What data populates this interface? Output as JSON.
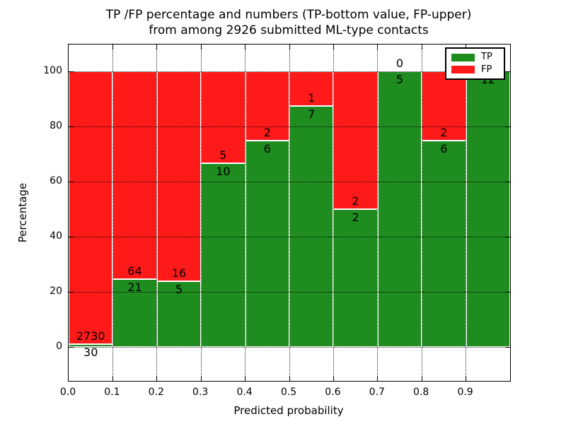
{
  "title": {
    "line1": "TP /FP percentage and numbers (TP-bottom value, FP-upper)",
    "line2": "from among 2926 submitted ML-type contacts"
  },
  "axes": {
    "xlabel": "Predicted probability",
    "ylabel": "Percentage",
    "xtick_labels": [
      "0.0",
      "0.1",
      "0.2",
      "0.3",
      "0.4",
      "0.5",
      "0.6",
      "0.7",
      "0.8",
      "0.9"
    ],
    "ytick_labels": [
      "0",
      "20",
      "40",
      "60",
      "80",
      "100"
    ],
    "ytick_values": [
      0,
      20,
      40,
      60,
      80,
      100
    ]
  },
  "legend": {
    "items": [
      {
        "label": "TP",
        "color_key": "tp"
      },
      {
        "label": "FP",
        "color_key": "fp"
      }
    ]
  },
  "colors": {
    "tp": "#1e8c1e",
    "fp": "#ff1a1a",
    "grid": "#000000",
    "text": "#000000",
    "background": "#ffffff"
  },
  "chart_data": {
    "type": "bar",
    "stacked": true,
    "normalized": "percent",
    "title": "TP /FP percentage and numbers (TP-bottom value, FP-upper) from among 2926 submitted ML-type contacts",
    "xlabel": "Predicted probability",
    "ylabel": "Percentage",
    "total_contacts": 2926,
    "bin_edges": [
      0.0,
      0.1,
      0.2,
      0.3,
      0.4,
      0.5,
      0.6,
      0.7,
      0.8,
      0.9,
      1.0
    ],
    "series": [
      {
        "name": "TP",
        "color": "#1e8c1e",
        "counts": [
          30,
          21,
          5,
          10,
          6,
          7,
          2,
          5,
          6,
          12
        ]
      },
      {
        "name": "FP",
        "color": "#ff1a1a",
        "counts": [
          2730,
          64,
          16,
          5,
          2,
          1,
          2,
          0,
          2,
          0
        ]
      }
    ],
    "tp_percent": [
      1.09,
      24.71,
      23.81,
      66.67,
      75.0,
      87.5,
      50.0,
      100.0,
      75.0,
      100.0
    ],
    "ylim": [
      -12.3,
      109.7
    ],
    "xlim": [
      0.0,
      1.0
    ],
    "grid": true,
    "legend_position": "upper right"
  }
}
